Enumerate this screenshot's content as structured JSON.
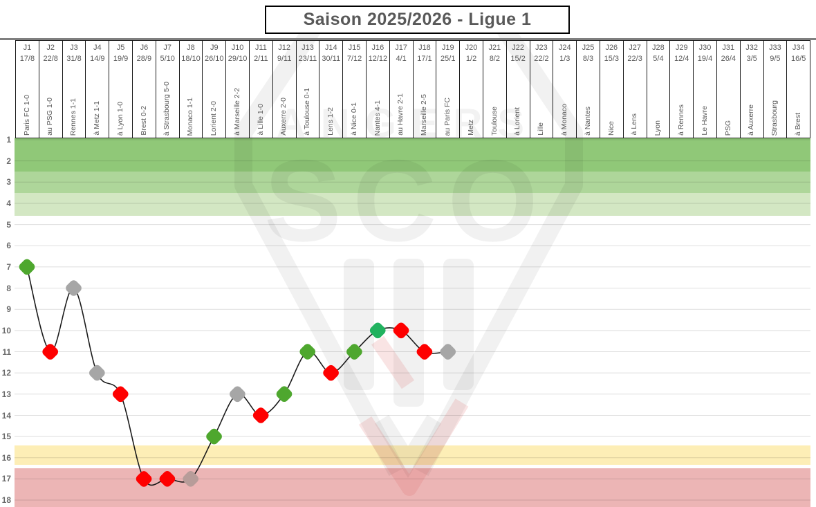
{
  "title": "Saison 2025/2026 - Ligue 1",
  "watermark": {
    "primary": "SCO",
    "secondary": "ANGERS"
  },
  "colors": {
    "win_green": "#4ea72e",
    "win_emerald": "#21b25f",
    "loss_red": "#fe0000",
    "draw_gray": "#a6a6a6",
    "draw_gray_on_red_zone": "#b79c99",
    "zone_top_dark_green": "#90c878",
    "zone_top_mid_green": "#aed69a",
    "zone_top_light_green": "#d3e7c3",
    "zone_playoff_yellow": "#fdeeb6",
    "zone_relegation_red": "#ecb5b5",
    "line": "#1a1a1a",
    "text_gray": "#595959",
    "header_rule_gray": "#7f7f7f"
  },
  "y_axis": {
    "min": 1,
    "max": 18
  },
  "chart_data": {
    "type": "line",
    "title": "Saison 2025/2026 - Ligue 1",
    "ylim": [
      1,
      18
    ],
    "y_inverted": true,
    "grid": true,
    "series": [
      {
        "name": "position",
        "values": [
          7,
          11,
          8,
          12,
          13,
          17,
          17,
          17,
          15,
          13,
          14,
          13,
          11,
          12,
          11,
          10,
          10,
          11,
          11,
          null,
          null,
          null,
          null,
          null,
          null,
          null,
          null,
          null,
          null,
          null,
          null,
          null,
          null,
          null
        ]
      }
    ],
    "zones": [
      {
        "from": 0.9,
        "to": 2.5,
        "color": "#90c878"
      },
      {
        "from": 2.5,
        "to": 3.5,
        "color": "#aed69a"
      },
      {
        "from": 3.5,
        "to": 4.6,
        "color": "#d3e7c3"
      },
      {
        "from": 15.42,
        "to": 16.34,
        "color": "#fdeeb6"
      },
      {
        "from": 16.5,
        "to": 18.4,
        "color": "#ecb5b5"
      }
    ],
    "matchdays": [
      {
        "day": "J1",
        "date": "17/8",
        "match": "Paris FC 1-0",
        "position": 7,
        "result": "win",
        "marker_color": "#4ea72e"
      },
      {
        "day": "J2",
        "date": "22/8",
        "match": "au PSG 1-0",
        "position": 11,
        "result": "loss",
        "marker_color": "#fe0000"
      },
      {
        "day": "J3",
        "date": "31/8",
        "match": "Rennes 1-1",
        "position": 8,
        "result": "draw",
        "marker_color": "#a6a6a6"
      },
      {
        "day": "J4",
        "date": "14/9",
        "match": "à Metz 1-1",
        "position": 12,
        "result": "draw",
        "marker_color": "#a6a6a6"
      },
      {
        "day": "J5",
        "date": "19/9",
        "match": "à Lyon 1-0",
        "position": 13,
        "result": "loss",
        "marker_color": "#fe0000"
      },
      {
        "day": "J6",
        "date": "28/9",
        "match": "Brest 0-2",
        "position": 17,
        "result": "loss",
        "marker_color": "#fe0000"
      },
      {
        "day": "J7",
        "date": "5/10",
        "match": "à Strasbourg  5-0",
        "position": 17,
        "result": "loss",
        "marker_color": "#fe0000"
      },
      {
        "day": "J8",
        "date": "18/10",
        "match": "Monaco 1-1",
        "position": 17,
        "result": "draw",
        "marker_color": "#b79c99"
      },
      {
        "day": "J9",
        "date": "26/10",
        "match": "Lorient 2-0",
        "position": 15,
        "result": "win",
        "marker_color": "#4ea72e"
      },
      {
        "day": "J10",
        "date": "29/10",
        "match": "à Marseille 2-2",
        "position": 13,
        "result": "draw",
        "marker_color": "#a6a6a6"
      },
      {
        "day": "J11",
        "date": "2/11",
        "match": "à Lille 1-0",
        "position": 14,
        "result": "loss",
        "marker_color": "#fe0000"
      },
      {
        "day": "J12",
        "date": "9/11",
        "match": "Auxerre 2-0",
        "position": 13,
        "result": "win",
        "marker_color": "#4ea72e"
      },
      {
        "day": "J13",
        "date": "23/11",
        "match": "à Toulouse 0-1",
        "position": 11,
        "result": "win",
        "marker_color": "#4ea72e"
      },
      {
        "day": "J14",
        "date": "30/11",
        "match": "Lens 1-2",
        "position": 12,
        "result": "loss",
        "marker_color": "#fe0000"
      },
      {
        "day": "J15",
        "date": "7/12",
        "match": "à Nice 0-1",
        "position": 11,
        "result": "win",
        "marker_color": "#4ea72e"
      },
      {
        "day": "J16",
        "date": "12/12",
        "match": "Nantes 4-1",
        "position": 10,
        "result": "win",
        "marker_color": "#21b25f"
      },
      {
        "day": "J17",
        "date": "4/1",
        "match": "au Havre 2-1",
        "position": 10,
        "result": "loss",
        "marker_color": "#fe0000"
      },
      {
        "day": "J18",
        "date": "17/1",
        "match": "Marseille 2-5",
        "position": 11,
        "result": "loss",
        "marker_color": "#fe0000"
      },
      {
        "day": "J19",
        "date": "25/1",
        "match": "au Paris FC",
        "position": 11,
        "result": null,
        "marker_color": "#a6a6a6"
      },
      {
        "day": "J20",
        "date": "1/2",
        "match": "Metz",
        "position": null,
        "result": null,
        "marker_color": null
      },
      {
        "day": "J21",
        "date": "8/2",
        "match": "Toulouse",
        "position": null,
        "result": null,
        "marker_color": null
      },
      {
        "day": "J22",
        "date": "15/2",
        "match": "à Lorient",
        "position": null,
        "result": null,
        "marker_color": null
      },
      {
        "day": "J23",
        "date": "22/2",
        "match": "Lille",
        "position": null,
        "result": null,
        "marker_color": null
      },
      {
        "day": "J24",
        "date": "1/3",
        "match": "à Monaco",
        "position": null,
        "result": null,
        "marker_color": null
      },
      {
        "day": "J25",
        "date": "8/3",
        "match": "à Nantes",
        "position": null,
        "result": null,
        "marker_color": null
      },
      {
        "day": "J26",
        "date": "15/3",
        "match": "Nice",
        "position": null,
        "result": null,
        "marker_color": null
      },
      {
        "day": "J27",
        "date": "22/3",
        "match": "à Lens",
        "position": null,
        "result": null,
        "marker_color": null
      },
      {
        "day": "J28",
        "date": "5/4",
        "match": "Lyon",
        "position": null,
        "result": null,
        "marker_color": null
      },
      {
        "day": "J29",
        "date": "12/4",
        "match": "à Rennes",
        "position": null,
        "result": null,
        "marker_color": null
      },
      {
        "day": "J30",
        "date": "19/4",
        "match": "Le Havre",
        "position": null,
        "result": null,
        "marker_color": null
      },
      {
        "day": "J31",
        "date": "26/4",
        "match": "PSG",
        "position": null,
        "result": null,
        "marker_color": null
      },
      {
        "day": "J32",
        "date": "3/5",
        "match": "à Auxerre",
        "position": null,
        "result": null,
        "marker_color": null
      },
      {
        "day": "J33",
        "date": "9/5",
        "match": "Strasbourg",
        "position": null,
        "result": null,
        "marker_color": null
      },
      {
        "day": "J34",
        "date": "16/5",
        "match": "à Brest",
        "position": null,
        "result": null,
        "marker_color": null
      }
    ]
  }
}
